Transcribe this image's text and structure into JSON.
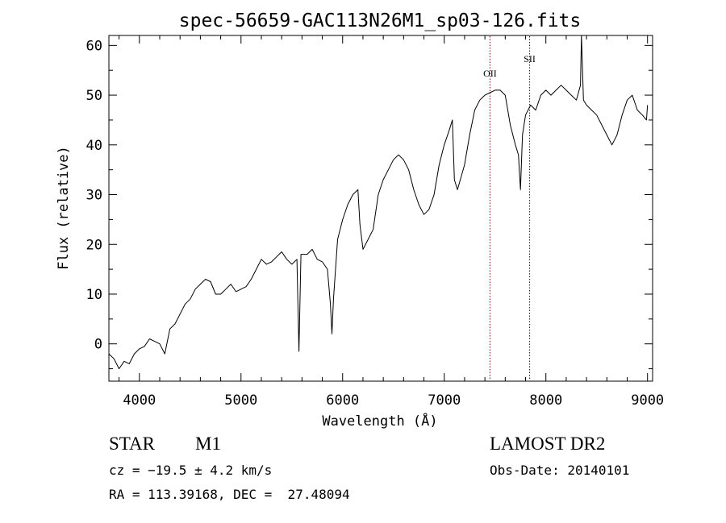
{
  "chart_data": {
    "type": "line",
    "title": "spec-56659-GAC113N26M1_sp03-126.fits",
    "xlabel": "Wavelength (Å)",
    "ylabel": "Flux (relative)",
    "xlim": [
      3700,
      9050
    ],
    "ylim": [
      -7.5,
      62
    ],
    "x_ticks": [
      4000,
      5000,
      6000,
      7000,
      8000,
      9000
    ],
    "y_ticks": [
      0,
      10,
      20,
      30,
      40,
      50,
      60
    ],
    "grid": false,
    "series": [
      {
        "points": [
          [
            3700,
            -2.0
          ],
          [
            3750,
            -3.0
          ],
          [
            3800,
            -5.0
          ],
          [
            3850,
            -3.5
          ],
          [
            3900,
            -4.0
          ],
          [
            3950,
            -2.0
          ],
          [
            4000,
            -1.0
          ],
          [
            4050,
            -0.5
          ],
          [
            4100,
            1.0
          ],
          [
            4150,
            0.5
          ],
          [
            4200,
            0.0
          ],
          [
            4250,
            -2.0
          ],
          [
            4300,
            3.0
          ],
          [
            4350,
            4.0
          ],
          [
            4400,
            6.0
          ],
          [
            4450,
            8.0
          ],
          [
            4500,
            9.0
          ],
          [
            4550,
            11.0
          ],
          [
            4600,
            12.0
          ],
          [
            4650,
            13.0
          ],
          [
            4700,
            12.5
          ],
          [
            4750,
            10.0
          ],
          [
            4800,
            10.0
          ],
          [
            4850,
            11.0
          ],
          [
            4900,
            12.0
          ],
          [
            4950,
            10.5
          ],
          [
            5000,
            11.0
          ],
          [
            5050,
            11.5
          ],
          [
            5100,
            13.0
          ],
          [
            5150,
            15.0
          ],
          [
            5200,
            17.0
          ],
          [
            5250,
            16.0
          ],
          [
            5300,
            16.5
          ],
          [
            5350,
            17.5
          ],
          [
            5400,
            18.5
          ],
          [
            5450,
            17.0
          ],
          [
            5500,
            16.0
          ],
          [
            5550,
            17.0
          ],
          [
            5570,
            -1.5
          ],
          [
            5590,
            18.0
          ],
          [
            5650,
            18.0
          ],
          [
            5700,
            19.0
          ],
          [
            5750,
            17.0
          ],
          [
            5800,
            16.5
          ],
          [
            5850,
            15.0
          ],
          [
            5880,
            8.0
          ],
          [
            5895,
            2.0
          ],
          [
            5910,
            9.0
          ],
          [
            5950,
            21.0
          ],
          [
            6000,
            25.0
          ],
          [
            6050,
            28.0
          ],
          [
            6100,
            30.0
          ],
          [
            6150,
            31.0
          ],
          [
            6170,
            24.0
          ],
          [
            6200,
            19.0
          ],
          [
            6250,
            21.0
          ],
          [
            6300,
            23.0
          ],
          [
            6350,
            30.0
          ],
          [
            6400,
            33.0
          ],
          [
            6450,
            35.0
          ],
          [
            6500,
            37.0
          ],
          [
            6550,
            38.0
          ],
          [
            6600,
            37.0
          ],
          [
            6650,
            35.0
          ],
          [
            6700,
            31.0
          ],
          [
            6750,
            28.0
          ],
          [
            6800,
            26.0
          ],
          [
            6850,
            27.0
          ],
          [
            6900,
            30.0
          ],
          [
            6950,
            36.0
          ],
          [
            7000,
            40.0
          ],
          [
            7050,
            43.0
          ],
          [
            7080,
            45.0
          ],
          [
            7100,
            33.0
          ],
          [
            7130,
            31.0
          ],
          [
            7200,
            36.0
          ],
          [
            7250,
            42.0
          ],
          [
            7300,
            47.0
          ],
          [
            7350,
            49.0
          ],
          [
            7400,
            50.0
          ],
          [
            7450,
            50.5
          ],
          [
            7500,
            51.0
          ],
          [
            7550,
            51.0
          ],
          [
            7600,
            50.0
          ],
          [
            7650,
            44.0
          ],
          [
            7700,
            40.0
          ],
          [
            7730,
            38.0
          ],
          [
            7750,
            31.0
          ],
          [
            7770,
            42.0
          ],
          [
            7800,
            46.0
          ],
          [
            7850,
            48.0
          ],
          [
            7900,
            47.0
          ],
          [
            7950,
            50.0
          ],
          [
            8000,
            51.0
          ],
          [
            8050,
            50.0
          ],
          [
            8100,
            51.0
          ],
          [
            8150,
            52.0
          ],
          [
            8200,
            51.0
          ],
          [
            8250,
            50.0
          ],
          [
            8300,
            49.0
          ],
          [
            8340,
            52.0
          ],
          [
            8350,
            62.0
          ],
          [
            8370,
            49.0
          ],
          [
            8400,
            48.0
          ],
          [
            8450,
            47.0
          ],
          [
            8500,
            46.0
          ],
          [
            8550,
            44.0
          ],
          [
            8600,
            42.0
          ],
          [
            8650,
            40.0
          ],
          [
            8700,
            42.0
          ],
          [
            8750,
            46.0
          ],
          [
            8800,
            49.0
          ],
          [
            8850,
            50.0
          ],
          [
            8900,
            47.0
          ],
          [
            8950,
            46.0
          ],
          [
            8990,
            45.0
          ],
          [
            9000,
            48.0
          ]
        ]
      }
    ],
    "line_markers": [
      {
        "label": "OII",
        "x": 7450,
        "color": "#8b0000"
      },
      {
        "label": "SII",
        "x": 7840,
        "color": "#1a1a4a"
      }
    ]
  },
  "info": {
    "object_class": "STAR",
    "subclass": "M1",
    "survey": "LAMOST DR2",
    "cz": "cz = −19.5 ± 4.2 km/s",
    "obs_date": "Obs-Date: 20140101",
    "coords": "RA = 113.39168, DEC =  27.48094"
  }
}
